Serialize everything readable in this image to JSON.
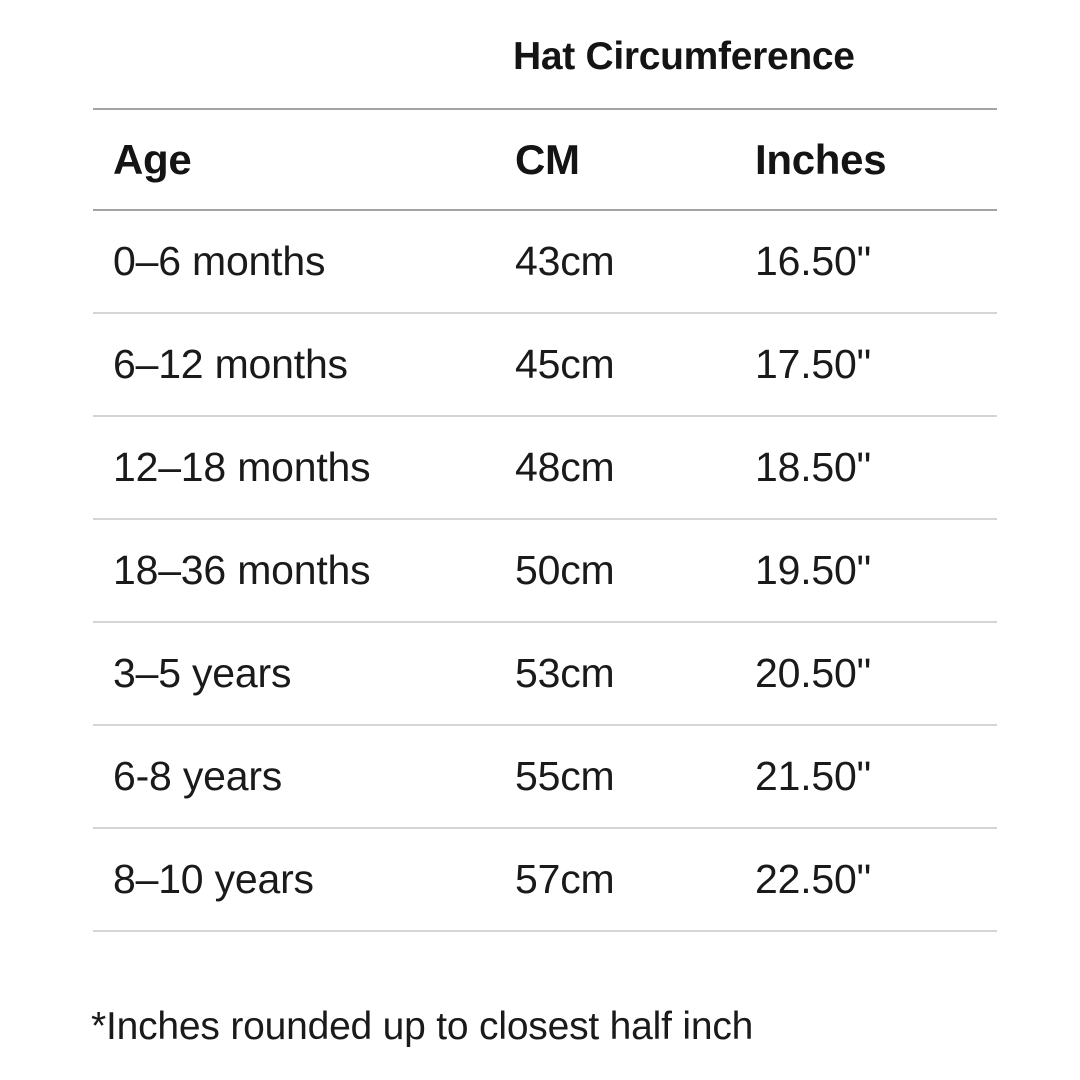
{
  "title": "Hat Circumference",
  "table": {
    "headers": {
      "age": "Age",
      "cm": "CM",
      "inches": "Inches"
    },
    "rows": [
      {
        "age": "0–6 months",
        "cm": "43cm",
        "inches": "16.50\""
      },
      {
        "age": "6–12 months",
        "cm": "45cm",
        "inches": "17.50\""
      },
      {
        "age": "12–18 months",
        "cm": "48cm",
        "inches": "18.50\""
      },
      {
        "age": "18–36 months",
        "cm": "50cm",
        "inches": "19.50\""
      },
      {
        "age": "3–5 years",
        "cm": "53cm",
        "inches": "20.50\""
      },
      {
        "age": "6-8 years",
        "cm": "55cm",
        "inches": "21.50\""
      },
      {
        "age": "8–10 years",
        "cm": "57cm",
        "inches": "22.50\""
      }
    ]
  },
  "footnote": "*Inches rounded up to closest half inch",
  "colors": {
    "background": "#ffffff",
    "text": "#1a1a1a",
    "header_rule": "#a3a3a3",
    "row_rule": "#d5d5d5"
  },
  "chart_data": {
    "type": "table",
    "title": "Hat Circumference",
    "columns": [
      "Age",
      "CM",
      "Inches"
    ],
    "rows": [
      [
        "0–6 months",
        "43cm",
        "16.50\""
      ],
      [
        "6–12 months",
        "45cm",
        "17.50\""
      ],
      [
        "12–18 months",
        "48cm",
        "18.50\""
      ],
      [
        "18–36 months",
        "50cm",
        "19.50\""
      ],
      [
        "3–5 years",
        "53cm",
        "20.50\""
      ],
      [
        "6-8 years",
        "55cm",
        "21.50\""
      ],
      [
        "8–10 years",
        "57cm",
        "22.50\""
      ]
    ],
    "note": "*Inches rounded up to closest half inch"
  }
}
